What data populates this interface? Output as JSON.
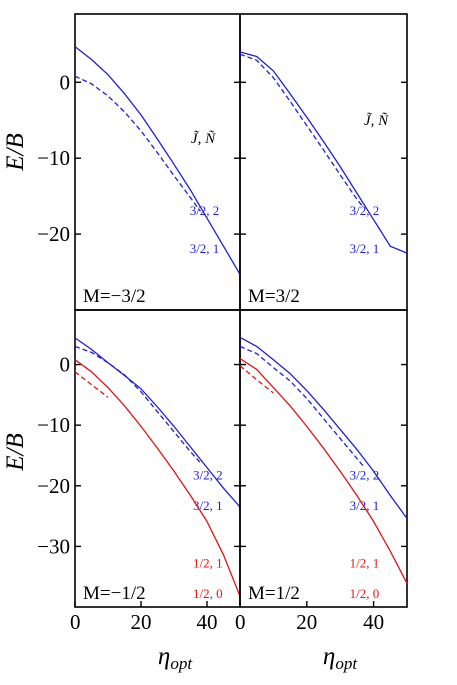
{
  "figure": {
    "ylabel": "E/B",
    "xlabel": "η",
    "xlabel_sub": "opt"
  },
  "colors": {
    "blue": "#1f1fd6",
    "red": "#e01515",
    "axis": "#000000"
  },
  "chart_data": [
    {
      "type": "line",
      "panel": "top-left",
      "label": "M=−3/2",
      "legend_title": "J̃, Ñ",
      "xlim": [
        0,
        50
      ],
      "ylim": [
        -30,
        9
      ],
      "yticks": [
        0,
        -10,
        -20
      ],
      "yticklabels": [
        "0",
        "−10",
        "−20"
      ],
      "xticks": [],
      "xticklabels": [],
      "series": [
        {
          "name": "3/2, 2",
          "color": "blue",
          "dash": false,
          "label_at": [
            39,
            -17.5
          ],
          "x": [
            0,
            5,
            10,
            15,
            20,
            25,
            30,
            35,
            40,
            45,
            50
          ],
          "y": [
            4.7,
            3.0,
            1.0,
            -1.5,
            -4.3,
            -7.5,
            -10.8,
            -14.2,
            -17.9,
            -21.6,
            -25.3
          ]
        },
        {
          "name": "3/2, 1",
          "color": "blue",
          "dash": true,
          "label_at": [
            39,
            -22.5
          ],
          "x": [
            0,
            5,
            10,
            15,
            20,
            25,
            30,
            35,
            38
          ],
          "y": [
            0.8,
            -0.2,
            -1.8,
            -3.9,
            -6.4,
            -9.3,
            -12.3,
            -15.2,
            -17.0
          ]
        }
      ]
    },
    {
      "type": "line",
      "panel": "top-right",
      "label": "M=3/2",
      "legend_title": "J̃, Ñ",
      "xlim": [
        0,
        50
      ],
      "ylim": [
        -30,
        9
      ],
      "yticks": [
        0,
        -10,
        -20
      ],
      "yticklabels": [
        "",
        "",
        ""
      ],
      "xticks": [],
      "xticklabels": [],
      "series": [
        {
          "name": "3/2, 2",
          "color": "blue",
          "dash": false,
          "label_at": [
            37,
            -17.5
          ],
          "x": [
            0,
            5,
            10,
            15,
            20,
            25,
            30,
            35,
            40,
            45,
            50
          ],
          "y": [
            4.0,
            3.4,
            1.5,
            -1.5,
            -4.6,
            -7.8,
            -11.1,
            -14.6,
            -18.1,
            -21.6,
            -22.5
          ]
        },
        {
          "name": "3/2, 1",
          "color": "blue",
          "dash": true,
          "label_at": [
            37,
            -22.5
          ],
          "x": [
            0,
            5,
            10,
            15,
            20,
            25,
            30,
            35,
            37
          ],
          "y": [
            3.7,
            2.9,
            0.6,
            -2.5,
            -5.7,
            -8.9,
            -12.2,
            -15.4,
            -16.5
          ]
        }
      ]
    },
    {
      "type": "line",
      "panel": "bottom-left",
      "label": "M=−1/2",
      "legend_title": "",
      "xlim": [
        0,
        50
      ],
      "ylim": [
        -40,
        9
      ],
      "yticks": [
        0,
        -10,
        -20,
        -30
      ],
      "yticklabels": [
        "0",
        "−10",
        "−20",
        "−30"
      ],
      "xticks": [
        0,
        20,
        40
      ],
      "xticklabels": [
        "0",
        "20",
        "40"
      ],
      "series": [
        {
          "name": "3/2, 2",
          "color": "blue",
          "dash": false,
          "label_at": [
            40,
            -19
          ],
          "x": [
            0,
            5,
            10,
            15,
            20,
            25,
            30,
            35,
            40,
            45,
            50
          ],
          "y": [
            4.4,
            2.5,
            0.3,
            -1.8,
            -4.0,
            -7.0,
            -10.2,
            -13.6,
            -17.0,
            -20.4,
            -23.5
          ]
        },
        {
          "name": "3/2, 1",
          "color": "blue",
          "dash": true,
          "label_at": [
            40,
            -24
          ],
          "x": [
            0,
            5,
            10,
            15,
            20,
            25,
            30,
            35,
            38
          ],
          "y": [
            3.0,
            2.0,
            0.3,
            -1.7,
            -4.5,
            -7.8,
            -11.1,
            -14.4,
            -16.2
          ]
        },
        {
          "name": "1/2, 1",
          "color": "red",
          "dash": false,
          "label_at": [
            40,
            -33.5
          ],
          "x": [
            0,
            5,
            10,
            15,
            20,
            25,
            30,
            35,
            40,
            45,
            50
          ],
          "y": [
            0.8,
            -1.2,
            -3.8,
            -6.8,
            -10.2,
            -13.8,
            -17.6,
            -21.6,
            -25.9,
            -31.4,
            -38.2
          ]
        },
        {
          "name": "1/2, 0",
          "color": "red",
          "dash": true,
          "label_at": [
            40,
            -38.5
          ],
          "x": [
            0,
            5,
            10
          ],
          "y": [
            -1.2,
            -3.3,
            -5.4
          ]
        }
      ]
    },
    {
      "type": "line",
      "panel": "bottom-right",
      "label": "M=1/2",
      "legend_title": "",
      "xlim": [
        0,
        50
      ],
      "ylim": [
        -40,
        9
      ],
      "yticks": [
        0,
        -10,
        -20,
        -30
      ],
      "yticklabels": [
        "",
        "",
        "",
        ""
      ],
      "xticks": [
        0,
        20,
        40
      ],
      "xticklabels": [
        "0",
        "20",
        "40"
      ],
      "series": [
        {
          "name": "3/2, 2",
          "color": "blue",
          "dash": false,
          "label_at": [
            37,
            -19
          ],
          "x": [
            0,
            5,
            10,
            15,
            20,
            25,
            30,
            35,
            40,
            45,
            50
          ],
          "y": [
            4.5,
            3.0,
            0.8,
            -1.5,
            -4.3,
            -7.4,
            -10.7,
            -14.0,
            -17.6,
            -21.6,
            -25.4
          ]
        },
        {
          "name": "3/2, 1",
          "color": "blue",
          "dash": true,
          "label_at": [
            37,
            -24
          ],
          "x": [
            0,
            5,
            10,
            15,
            20,
            25,
            30,
            35,
            37
          ],
          "y": [
            3.0,
            1.8,
            -0.5,
            -2.7,
            -5.6,
            -8.9,
            -12.2,
            -15.5,
            -16.8
          ]
        },
        {
          "name": "1/2, 1",
          "color": "red",
          "dash": false,
          "label_at": [
            37,
            -33.5
          ],
          "x": [
            0,
            5,
            10,
            15,
            20,
            25,
            30,
            35,
            40,
            45,
            50
          ],
          "y": [
            1.0,
            -0.8,
            -3.8,
            -6.8,
            -10.2,
            -13.8,
            -17.6,
            -21.6,
            -25.9,
            -30.8,
            -36.1
          ]
        },
        {
          "name": "1/2, 0",
          "color": "red",
          "dash": true,
          "label_at": [
            37,
            -38.5
          ],
          "x": [
            0,
            5,
            10
          ],
          "y": [
            -0.2,
            -2.5,
            -4.7
          ]
        }
      ]
    }
  ]
}
